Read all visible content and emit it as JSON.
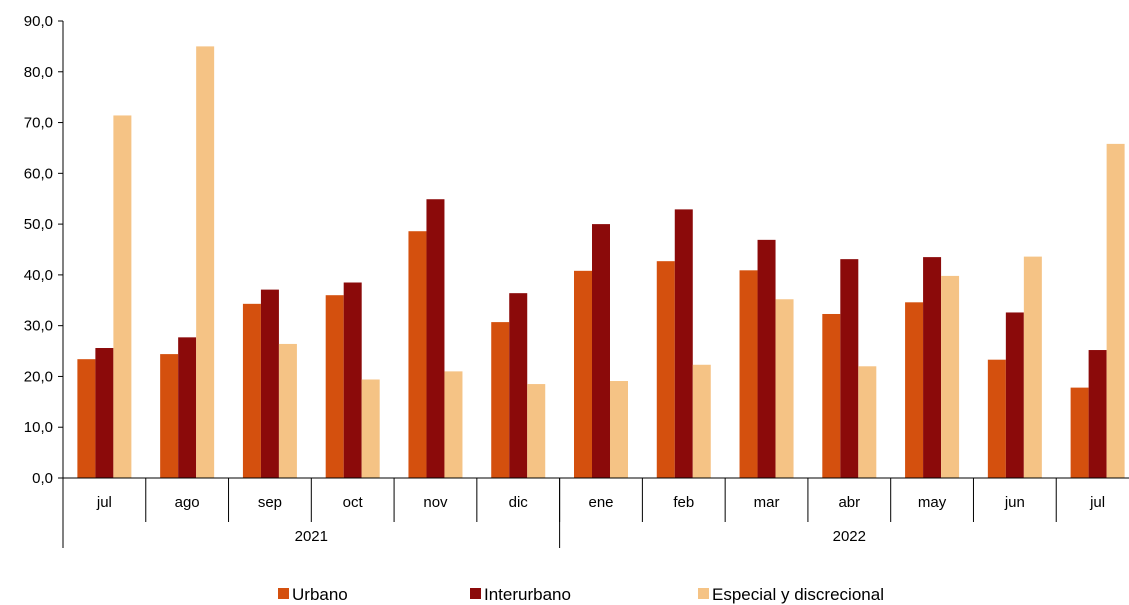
{
  "chart_data": {
    "type": "bar",
    "title": "",
    "xlabel": "",
    "ylabel": "",
    "ylim": [
      0,
      90
    ],
    "yticks": [
      "0,0",
      "10,0",
      "20,0",
      "30,0",
      "40,0",
      "50,0",
      "60,0",
      "70,0",
      "80,0",
      "90,0"
    ],
    "categories": [
      "jul",
      "ago",
      "sep",
      "oct",
      "nov",
      "dic",
      "ene",
      "feb",
      "mar",
      "abr",
      "may",
      "jun",
      "jul"
    ],
    "groups": [
      {
        "label": "2021",
        "count": 6
      },
      {
        "label": "2022",
        "count": 7
      }
    ],
    "grid": false,
    "legend_position": "bottom",
    "series": [
      {
        "name": "Urbano",
        "color": "#d4500e",
        "values": [
          23.4,
          24.4,
          34.3,
          36.0,
          48.6,
          30.7,
          40.8,
          42.7,
          40.9,
          32.3,
          34.6,
          23.3,
          17.8
        ]
      },
      {
        "name": "Interurbano",
        "color": "#8b0a0a",
        "values": [
          25.6,
          27.7,
          37.1,
          38.5,
          54.9,
          36.4,
          50.0,
          52.9,
          46.9,
          43.1,
          43.5,
          32.6,
          25.2
        ]
      },
      {
        "name": "Especial y discrecional",
        "color": "#f5c385",
        "values": [
          71.4,
          85.0,
          26.4,
          19.4,
          21.0,
          18.5,
          19.1,
          22.3,
          35.2,
          22.0,
          39.8,
          43.6,
          65.8
        ]
      }
    ]
  }
}
